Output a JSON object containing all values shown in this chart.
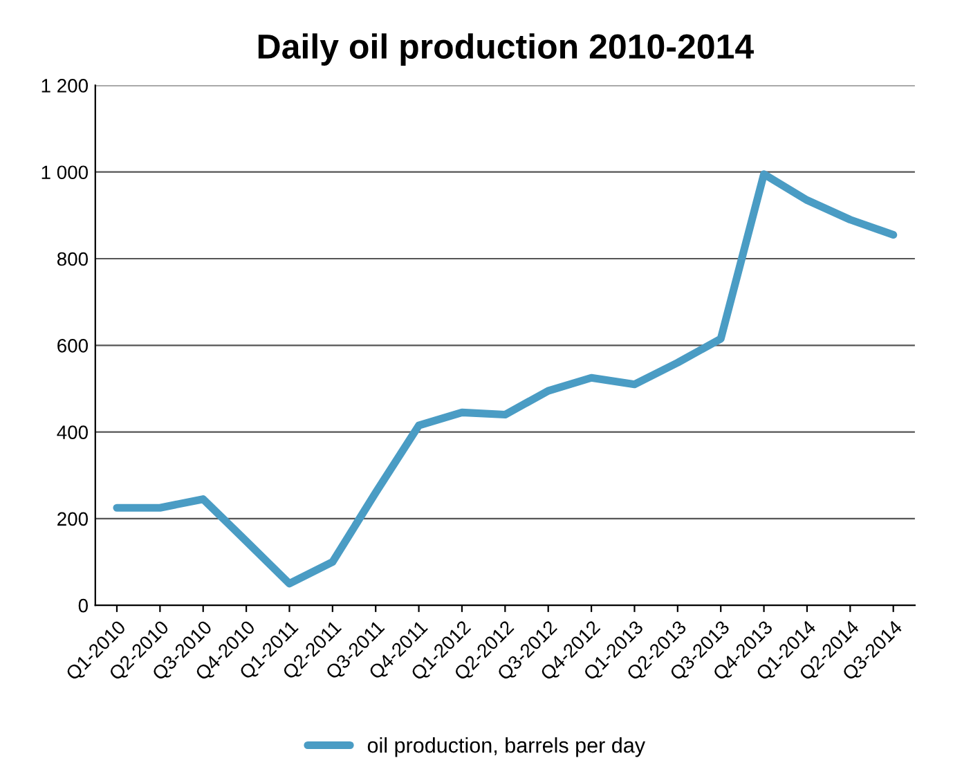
{
  "chart_data": {
    "type": "line",
    "title": "Daily oil production 2010-2014",
    "categories": [
      "Q1-2010",
      "Q2-2010",
      "Q3-2010",
      "Q4-2010",
      "Q1-2011",
      "Q2-2011",
      "Q3-2011",
      "Q4-2011",
      "Q1-2012",
      "Q2-2012",
      "Q3-2012",
      "Q4-2012",
      "Q1-2013",
      "Q2-2013",
      "Q3-2013",
      "Q4-2013",
      "Q1-2014",
      "Q2-2014",
      "Q3-2014"
    ],
    "series": [
      {
        "name": "oil production, barrels per day",
        "color": "#4a9cc4",
        "values": [
          225,
          225,
          245,
          148,
          50,
          100,
          260,
          415,
          445,
          440,
          495,
          525,
          510,
          560,
          615,
          995,
          935,
          890,
          855
        ]
      }
    ],
    "ylim": [
      0,
      1200
    ],
    "yticks": [
      0,
      200,
      400,
      600,
      800,
      {
        "value": 1000,
        "label": "1 000"
      },
      {
        "value": 1200,
        "label": "1 200"
      }
    ],
    "grid": "y",
    "legend": "bottom",
    "marker": "none",
    "line_style": "solid"
  }
}
